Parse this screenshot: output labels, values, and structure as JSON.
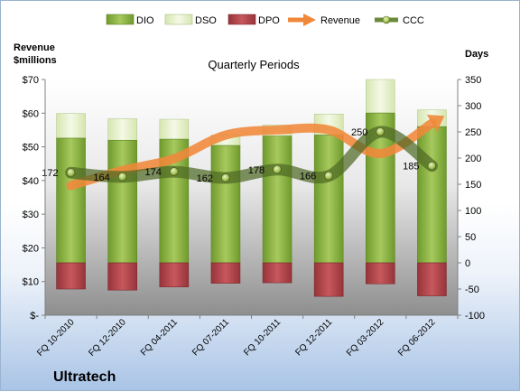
{
  "chart_data": {
    "type": "bar",
    "title": "Quarterly Periods",
    "company": "Ultratech",
    "y_left_label_line1": "Revenue",
    "y_left_label_line2": "$millions",
    "y_right_label": "Days",
    "categories": [
      "FQ 10-2010",
      "FQ 12-2010",
      "FQ 04-2011",
      "FQ 07-2011",
      "FQ 10-2011",
      "FQ 12-2011",
      "FQ 03-2012",
      "FQ 06-2012"
    ],
    "left_axis": {
      "ylim": [
        0,
        70
      ],
      "ticks": [
        0,
        10,
        20,
        30,
        40,
        50,
        60,
        70
      ],
      "tick_labels": [
        "$-",
        "$10",
        "$20",
        "$30",
        "$40",
        "$50",
        "$60",
        "$70"
      ]
    },
    "right_axis": {
      "ylim": [
        -100,
        350
      ],
      "ticks": [
        -100,
        -50,
        0,
        50,
        100,
        150,
        200,
        250,
        300,
        350
      ],
      "tick_labels": [
        "-100",
        "-50",
        "0",
        "50",
        "100",
        "150",
        "200",
        "250",
        "300",
        "350"
      ]
    },
    "series": [
      {
        "name": "DIO",
        "axis": "right",
        "kind": "stacked-bar",
        "color": "#8fb347",
        "values": [
          238,
          234,
          236,
          224,
          242,
          244,
          286,
          260
        ]
      },
      {
        "name": "DSO",
        "axis": "right",
        "kind": "stacked-bar",
        "color": "#e4efcb",
        "values": [
          47,
          41,
          38,
          20,
          21,
          40,
          64,
          32
        ]
      },
      {
        "name": "DPO",
        "axis": "right",
        "kind": "bar-negative",
        "color": "#b3474c",
        "values": [
          -50,
          -52,
          -46,
          -39,
          -38,
          -64,
          -40,
          -63
        ]
      },
      {
        "name": "Revenue",
        "axis": "left",
        "kind": "arrow-line",
        "color": "#f0883a",
        "values": [
          38.5,
          43,
          46.5,
          53.5,
          55,
          55,
          48,
          57
        ]
      },
      {
        "name": "CCC",
        "axis": "right",
        "kind": "line-markers",
        "color": "#6a8a3a",
        "values": [
          172,
          164,
          174,
          162,
          178,
          166,
          250,
          185
        ]
      }
    ],
    "ccc_labels": [
      "172",
      "164",
      "174",
      "162",
      "178",
      "166",
      "250",
      "185"
    ],
    "legend_position": "top",
    "grid": false
  }
}
